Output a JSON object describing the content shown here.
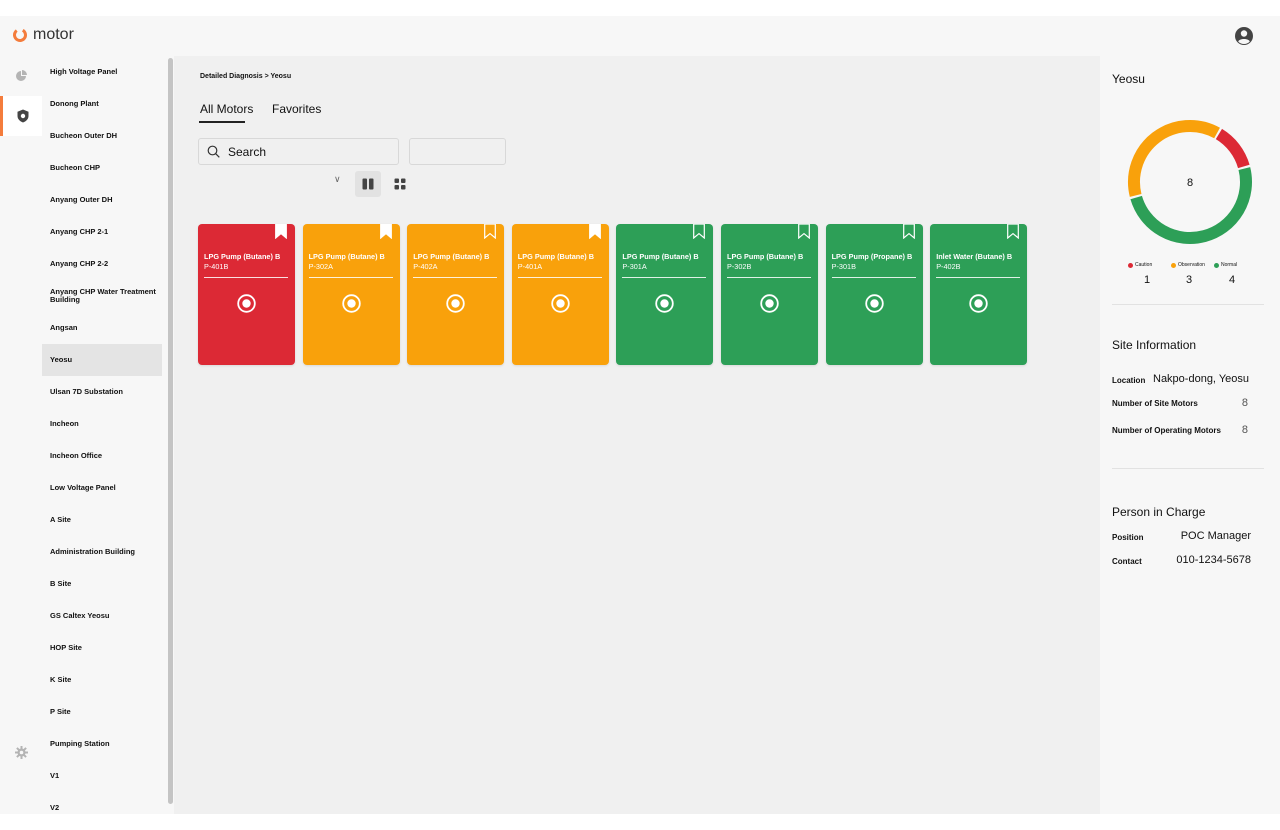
{
  "app": {
    "logo_text": "motor"
  },
  "sidebar": {
    "sites": [
      "High Voltage Panel",
      "Donong Plant",
      "Bucheon Outer DH",
      "Bucheon CHP",
      "Anyang Outer DH",
      "Anyang CHP 2-1",
      "Anyang CHP 2-2",
      "Anyang CHP Water Treatment Building",
      "Angsan",
      "Yeosu",
      "Ulsan 7D Substation",
      "Incheon",
      "Incheon Office",
      "Low Voltage Panel",
      "A Site",
      "Administration Building",
      "B Site",
      "GS Caltex Yeosu",
      "HOP Site",
      "K Site",
      "P Site",
      "Pumping Station",
      "V1",
      "V2"
    ],
    "selected": "Yeosu"
  },
  "main": {
    "breadcrumb": "Detailed Diagnosis > Yeosu",
    "tabs": [
      {
        "label": "All Motors"
      },
      {
        "label": "Favorites"
      }
    ],
    "search": {
      "value": "Search"
    },
    "motors": [
      {
        "name": "LPG Pump (Butane) B",
        "id": "P-401B",
        "status": "caution",
        "favorite": true
      },
      {
        "name": "LPG Pump (Butane) B",
        "id": "P-302A",
        "status": "observation",
        "favorite": true
      },
      {
        "name": "LPG Pump (Butane) B",
        "id": "P-402A",
        "status": "observation",
        "favorite": false
      },
      {
        "name": "LPG Pump (Butane) B",
        "id": "P-401A",
        "status": "observation",
        "favorite": true
      },
      {
        "name": "LPG Pump (Butane) B",
        "id": "P-301A",
        "status": "normal",
        "favorite": false
      },
      {
        "name": "LPG Pump (Butane) B",
        "id": "P-302B",
        "status": "normal",
        "favorite": false
      },
      {
        "name": "LPG Pump (Propane) B",
        "id": "P-301B",
        "status": "normal",
        "favorite": false
      },
      {
        "name": "Inlet Water (Butane) B",
        "id": "P-402B",
        "status": "normal",
        "favorite": false
      }
    ]
  },
  "panel": {
    "site_name": "Yeosu",
    "total": "8",
    "legend": [
      {
        "label": "Caution",
        "count": "1",
        "color": "#dc2935"
      },
      {
        "label": "Observation",
        "count": "3",
        "color": "#f9a10b"
      },
      {
        "label": "Normal",
        "count": "4",
        "color": "#2d9f57"
      }
    ],
    "site_info": {
      "title": "Site Information",
      "location_label": "Location",
      "location_value": "Nakpo-dong, Yeosu",
      "site_motors_label": "Number of Site Motors",
      "site_motors_value": "8",
      "operating_motors_label": "Number of Operating Motors",
      "operating_motors_value": "8"
    },
    "person": {
      "title": "Person in Charge",
      "position_label": "Position",
      "position_value": "POC Manager",
      "contact_label": "Contact",
      "contact_value": "010-1234-5678"
    }
  },
  "icons": {
    "logo": "power-ring-icon",
    "profile": "user-circle-icon",
    "dashboard": "pie-chart-icon",
    "diagnosis": "shield-icon",
    "settings": "gear-icon",
    "search": "search-icon",
    "list_view": "columns-icon",
    "grid_view": "grid-icon",
    "bookmark": "bookmark-icon",
    "status": "radio-target-icon"
  },
  "colors": {
    "caution": "#dc2935",
    "observation": "#f9a10b",
    "normal": "#2d9f57",
    "accent": "#f47c3c"
  }
}
